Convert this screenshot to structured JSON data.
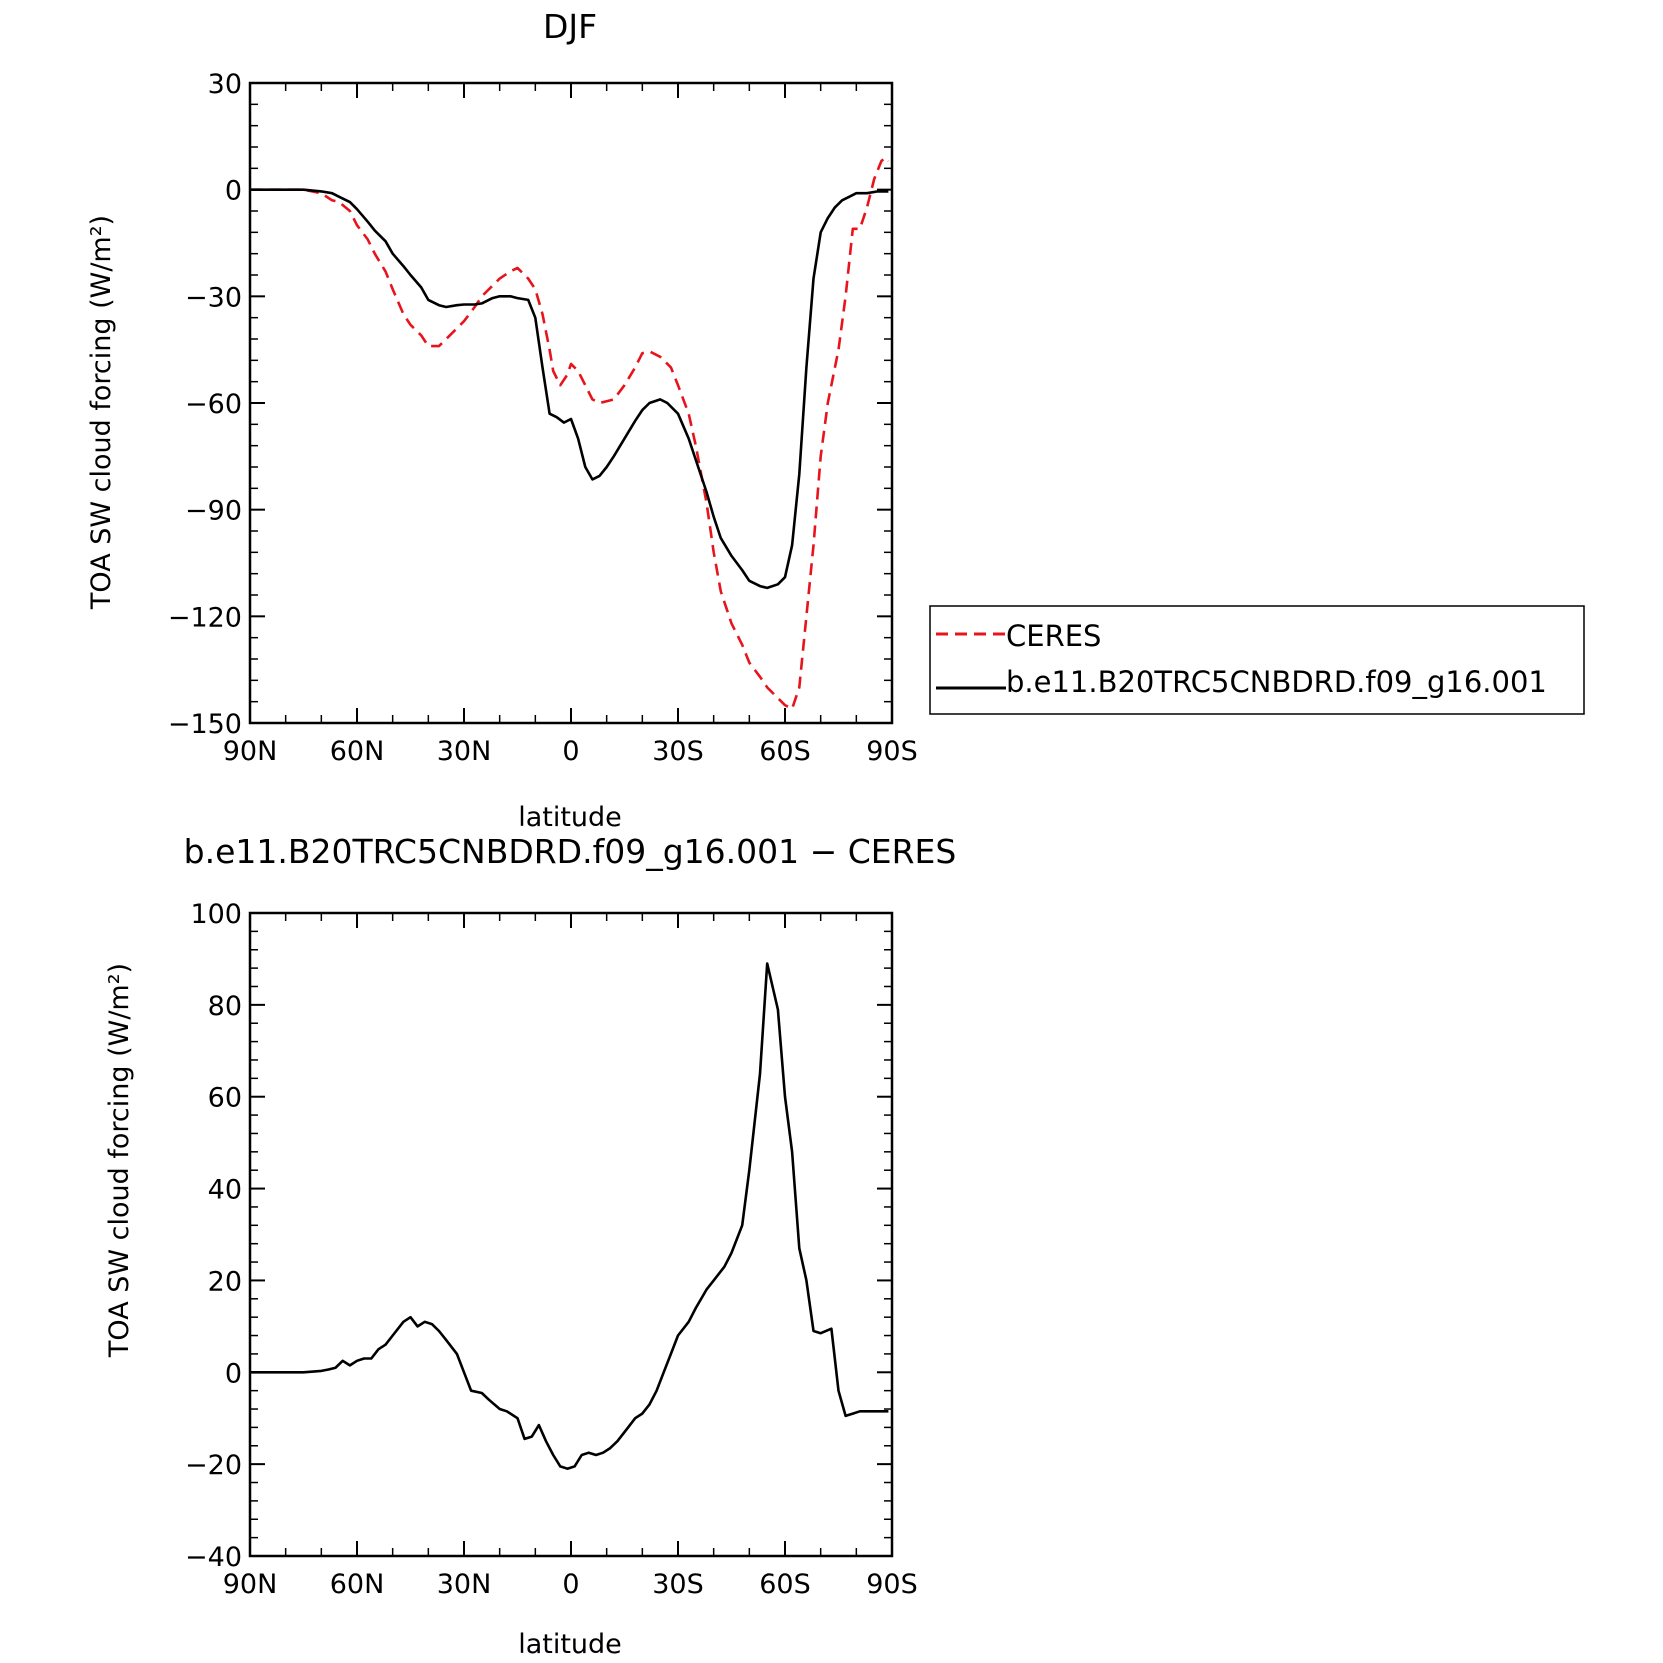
{
  "chart_data": [
    {
      "type": "line",
      "title": "DJF",
      "xlabel": "latitude",
      "ylabel": "TOA SW cloud forcing (W/m²)",
      "xlim": [
        90,
        -90
      ],
      "ylim": [
        -150,
        30
      ],
      "xticks": [
        90,
        60,
        30,
        0,
        -30,
        -60,
        -90
      ],
      "xtick_labels": [
        "90N",
        "60N",
        "30N",
        "0",
        "30S",
        "60S",
        "90S"
      ],
      "yticks": [
        30,
        0,
        -30,
        -60,
        -90,
        -120,
        -150
      ],
      "ytick_labels": [
        "30",
        "0",
        "−30",
        "−60",
        "−90",
        "−120",
        "−150"
      ],
      "legend": "outside-right",
      "series": [
        {
          "name": "CERES",
          "color": "#e8141c",
          "dash": true,
          "x": [
            90,
            85,
            80,
            75,
            70,
            67,
            65,
            62,
            60,
            57,
            55,
            52,
            50,
            47,
            45,
            42,
            40,
            37,
            35,
            32,
            30,
            27,
            25,
            22,
            20,
            17,
            15,
            12,
            10,
            8,
            6,
            5,
            3,
            1,
            0,
            -2,
            -4,
            -6,
            -8,
            -10,
            -12,
            -15,
            -18,
            -20,
            -22,
            -25,
            -28,
            -30,
            -33,
            -35,
            -38,
            -40,
            -42,
            -45,
            -48,
            -50,
            -53,
            -55,
            -58,
            -60,
            -62,
            -64,
            -66,
            -68,
            -70,
            -72,
            -75,
            -77,
            -79,
            -81,
            -83,
            -85,
            -87,
            -88,
            -89
          ],
          "y": [
            0,
            0,
            0,
            0,
            -1,
            -3,
            -3.5,
            -6,
            -10,
            -14,
            -18,
            -23,
            -28,
            -35,
            -38,
            -41,
            -44,
            -44,
            -42,
            -39,
            -37,
            -33,
            -30,
            -27,
            -25,
            -23,
            -22,
            -25,
            -28,
            -35,
            -45,
            -51,
            -55,
            -52,
            -49,
            -51,
            -55,
            -59,
            -60,
            -59.5,
            -59,
            -55,
            -50,
            -46,
            -45.5,
            -47,
            -50,
            -55,
            -63,
            -72,
            -88,
            -102,
            -113,
            -122,
            -128,
            -133,
            -137,
            -140,
            -143,
            -145,
            -146,
            -140,
            -120,
            -100,
            -75,
            -60,
            -45,
            -30,
            -11,
            -11,
            -5,
            3,
            8,
            9,
            8
          ]
        },
        {
          "name": "b.e11.B20TRC5CNBDRD.f09_g16.001",
          "color": "#000000",
          "dash": false,
          "x": [
            90,
            85,
            80,
            75,
            70,
            67,
            65,
            62,
            60,
            57,
            55,
            52,
            50,
            47,
            45,
            42,
            40,
            37,
            35,
            32,
            30,
            27,
            25,
            22,
            20,
            17,
            15,
            12,
            10,
            8,
            6,
            4,
            2,
            0,
            -2,
            -4,
            -6,
            -8,
            -10,
            -12,
            -15,
            -18,
            -20,
            -22,
            -25,
            -27,
            -30,
            -33,
            -35,
            -38,
            -40,
            -42,
            -45,
            -48,
            -50,
            -53,
            -55,
            -58,
            -60,
            -62,
            -64,
            -66,
            -68,
            -70,
            -72,
            -74,
            -76,
            -78,
            -80,
            -83,
            -86,
            -89
          ],
          "y": [
            0,
            0,
            0,
            0,
            -0.5,
            -1,
            -2,
            -3.5,
            -5.5,
            -9,
            -11.5,
            -14.5,
            -18,
            -21.5,
            -24,
            -27.5,
            -31,
            -32.5,
            -33,
            -32.5,
            -32.3,
            -32.3,
            -32,
            -30.5,
            -30,
            -30,
            -30.5,
            -31,
            -36,
            -50,
            -63,
            -64,
            -65.5,
            -64.5,
            -70,
            -78,
            -81.5,
            -80.5,
            -78,
            -75,
            -70,
            -65,
            -62,
            -60,
            -59,
            -60,
            -63,
            -70,
            -76,
            -85,
            -92,
            -98,
            -103,
            -107,
            -110,
            -111.5,
            -112,
            -111,
            -109,
            -100,
            -80,
            -50,
            -25,
            -12,
            -8,
            -5,
            -3,
            -2,
            -1,
            -1,
            -0.5,
            -0.5
          ]
        }
      ]
    },
    {
      "type": "line",
      "title": "b.e11.B20TRC5CNBDRD.f09_g16.001 − CERES",
      "xlabel": "latitude",
      "ylabel": "TOA SW cloud forcing (W/m²)",
      "xlim": [
        90,
        -90
      ],
      "ylim": [
        -40,
        100
      ],
      "xticks": [
        90,
        60,
        30,
        0,
        -30,
        -60,
        -90
      ],
      "xtick_labels": [
        "90N",
        "60N",
        "30N",
        "0",
        "30S",
        "60S",
        "90S"
      ],
      "yticks": [
        100,
        80,
        60,
        40,
        20,
        0,
        -20,
        -40
      ],
      "ytick_labels": [
        "100",
        "80",
        "60",
        "40",
        "20",
        "0",
        "−20",
        "−40"
      ],
      "series": [
        {
          "color": "#000000",
          "dash": false,
          "x": [
            90,
            85,
            80,
            75,
            70,
            68,
            66,
            64,
            62,
            60,
            58,
            56,
            54,
            52,
            50,
            47,
            45,
            43,
            41,
            39,
            37,
            35,
            32,
            30,
            28,
            25,
            23,
            20,
            18,
            15,
            13,
            11,
            9,
            7,
            5,
            3,
            1,
            -1,
            -3,
            -5,
            -7,
            -9,
            -11,
            -13,
            -16,
            -18,
            -20,
            -22,
            -24,
            -26,
            -28,
            -30,
            -33,
            -35,
            -38,
            -40,
            -43,
            -45,
            -48,
            -50,
            -53,
            -55,
            -58,
            -60,
            -62,
            -64,
            -66,
            -68,
            -70,
            -73,
            -75,
            -77,
            -79,
            -81,
            -83,
            -85,
            -87,
            -89
          ],
          "y": [
            0,
            0,
            0,
            0,
            0.3,
            0.6,
            1,
            2.5,
            1.5,
            2.5,
            3,
            3,
            5,
            6,
            8,
            11,
            12,
            10,
            11,
            10.5,
            9,
            7,
            4,
            0,
            -4,
            -4.5,
            -6,
            -8,
            -8.5,
            -10,
            -14.5,
            -14,
            -11.5,
            -15,
            -18,
            -20.5,
            -21,
            -20.5,
            -18,
            -17.5,
            -18,
            -17.5,
            -16.5,
            -15,
            -12,
            -10,
            -9,
            -7,
            -4,
            0,
            4,
            8,
            11,
            14,
            18,
            20,
            23,
            26,
            32,
            44,
            65,
            89,
            79,
            60,
            48,
            27,
            20,
            9,
            8.5,
            9.5,
            -4,
            -9.5,
            -9,
            -8.5,
            -8.5,
            -8.5,
            -8.5,
            -8.5
          ]
        }
      ]
    }
  ]
}
